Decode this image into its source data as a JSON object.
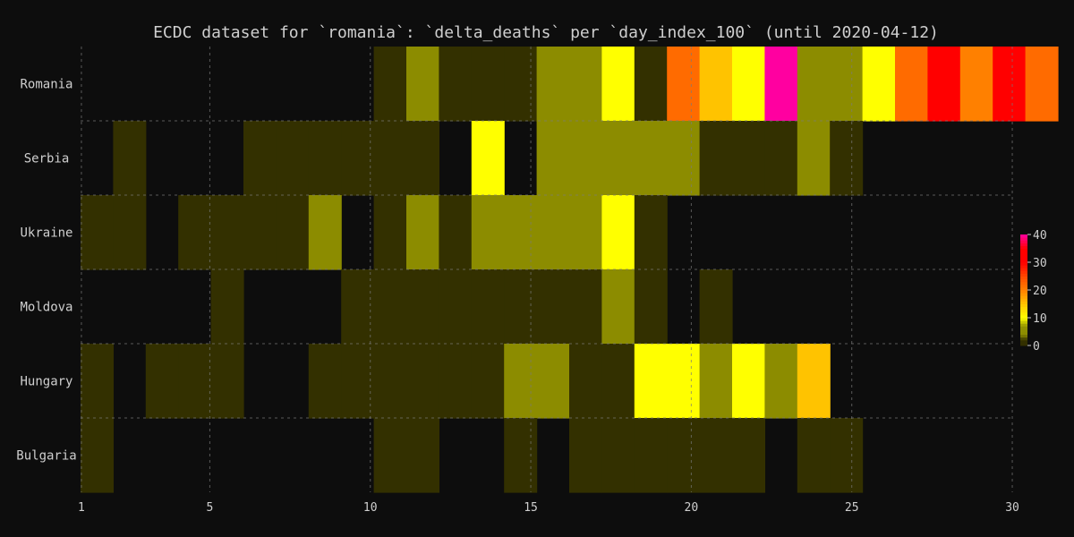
{
  "chart_data": {
    "type": "heatmap",
    "title": "ECDC dataset for `romania`: `delta_deaths` per `day_index_100` (until 2020-04-12)",
    "xlabel": "",
    "ylabel": "",
    "xlim": [
      0.75,
      30.25
    ],
    "x_ticks": [
      1,
      5,
      10,
      15,
      20,
      25,
      30
    ],
    "grid": true,
    "colorbar": {
      "min": 0,
      "max": 40,
      "ticks": [
        0,
        10,
        20,
        30,
        40
      ]
    },
    "rows": [
      {
        "name": "Romania",
        "cells": [
          [
            9,
            1
          ],
          [
            10,
            4
          ],
          [
            11,
            1
          ],
          [
            12,
            1
          ],
          [
            13,
            1
          ],
          [
            14,
            4
          ],
          [
            15,
            4
          ],
          [
            16,
            10
          ],
          [
            17,
            1
          ],
          [
            18,
            22
          ],
          [
            19,
            15
          ],
          [
            20,
            10
          ],
          [
            21,
            40
          ],
          [
            22,
            4
          ],
          [
            23,
            4
          ],
          [
            24,
            10
          ],
          [
            25,
            22
          ],
          [
            26,
            30
          ],
          [
            27,
            20
          ],
          [
            28,
            30
          ],
          [
            29,
            22
          ]
        ]
      },
      {
        "name": "Serbia",
        "cells": [
          [
            1,
            1
          ],
          [
            5,
            1
          ],
          [
            6,
            1
          ],
          [
            7,
            1
          ],
          [
            8,
            1
          ],
          [
            9,
            1
          ],
          [
            10,
            1
          ],
          [
            12,
            10
          ],
          [
            14,
            4
          ],
          [
            15,
            4
          ],
          [
            16,
            4
          ],
          [
            17,
            4
          ],
          [
            18,
            4
          ],
          [
            19,
            1
          ],
          [
            20,
            1
          ],
          [
            21,
            1
          ],
          [
            22,
            4
          ],
          [
            23,
            1
          ]
        ]
      },
      {
        "name": "Ukraine",
        "cells": [
          [
            0,
            1
          ],
          [
            1,
            1
          ],
          [
            3,
            1
          ],
          [
            4,
            1
          ],
          [
            5,
            1
          ],
          [
            6,
            1
          ],
          [
            7,
            4
          ],
          [
            9,
            1
          ],
          [
            10,
            4
          ],
          [
            11,
            1
          ],
          [
            12,
            4
          ],
          [
            13,
            4
          ],
          [
            14,
            4
          ],
          [
            15,
            4
          ],
          [
            16,
            10
          ],
          [
            17,
            1
          ]
        ]
      },
      {
        "name": "Moldova",
        "cells": [
          [
            4,
            1
          ],
          [
            8,
            1
          ],
          [
            9,
            1
          ],
          [
            10,
            1
          ],
          [
            11,
            1
          ],
          [
            12,
            1
          ],
          [
            13,
            1
          ],
          [
            14,
            1
          ],
          [
            15,
            1
          ],
          [
            16,
            4
          ],
          [
            17,
            1
          ],
          [
            19,
            1
          ]
        ]
      },
      {
        "name": "Hungary",
        "cells": [
          [
            0,
            1
          ],
          [
            2,
            1
          ],
          [
            3,
            1
          ],
          [
            4,
            1
          ],
          [
            7,
            1
          ],
          [
            8,
            1
          ],
          [
            9,
            1
          ],
          [
            10,
            1
          ],
          [
            11,
            1
          ],
          [
            12,
            1
          ],
          [
            13,
            4
          ],
          [
            14,
            4
          ],
          [
            15,
            1
          ],
          [
            16,
            1
          ],
          [
            17,
            10
          ],
          [
            18,
            10
          ],
          [
            19,
            4
          ],
          [
            20,
            10
          ],
          [
            21,
            4
          ],
          [
            22,
            15
          ]
        ]
      },
      {
        "name": "Bulgaria",
        "cells": [
          [
            0,
            1
          ],
          [
            9,
            1
          ],
          [
            10,
            1
          ],
          [
            13,
            1
          ],
          [
            15,
            1
          ],
          [
            16,
            1
          ],
          [
            17,
            1
          ],
          [
            18,
            1
          ],
          [
            19,
            1
          ],
          [
            20,
            1
          ],
          [
            22,
            1
          ],
          [
            23,
            1
          ]
        ]
      }
    ]
  }
}
